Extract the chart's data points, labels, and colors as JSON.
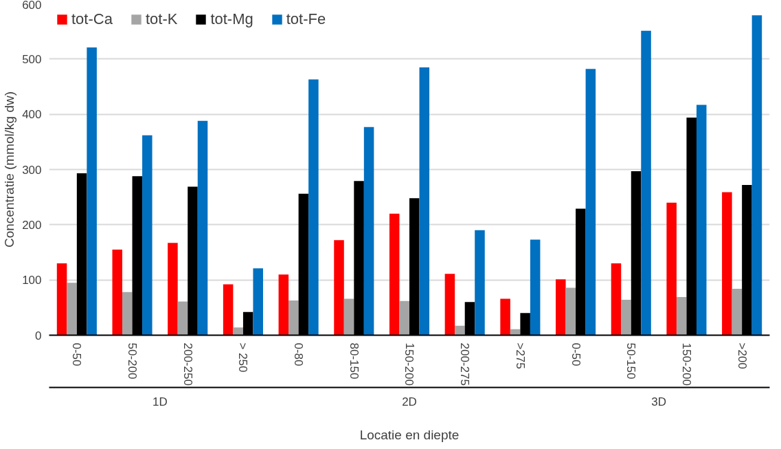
{
  "chart_data": {
    "type": "bar",
    "xlabel": "Locatie en diepte",
    "ylabel": "Concentratie (mmol/kg dw)",
    "categories": [
      "0-50",
      "50-200",
      "200-250",
      "> 250",
      "0-80",
      "80-150",
      "150-200",
      "200-275",
      ">275",
      "0-50",
      "50-150",
      "150-200",
      ">200"
    ],
    "annotations": [
      "1D",
      "2D",
      "3D"
    ],
    "series": [
      {
        "name": "tot-Ca",
        "color": "#ff0000",
        "values": [
          130,
          155,
          167,
          92,
          110,
          172,
          220,
          111,
          66,
          101,
          130,
          240,
          259
        ]
      },
      {
        "name": "tot-K",
        "color": "#a5a5a5",
        "values": [
          95,
          78,
          61,
          14,
          63,
          66,
          62,
          17,
          11,
          86,
          64,
          69,
          84
        ]
      },
      {
        "name": "tot-Mg",
        "color": "#000000",
        "values": [
          293,
          288,
          269,
          42,
          256,
          279,
          248,
          60,
          40,
          229,
          297,
          394,
          272
        ]
      },
      {
        "name": "tot-Fe",
        "color": "#0070c0",
        "values": [
          521,
          362,
          388,
          121,
          463,
          377,
          485,
          190,
          173,
          482,
          551,
          417,
          579
        ]
      }
    ],
    "ylim": [
      0,
      600
    ],
    "yticks": [
      0,
      100,
      200,
      300,
      400,
      500,
      600
    ],
    "grid": "y",
    "legend": "top left"
  }
}
